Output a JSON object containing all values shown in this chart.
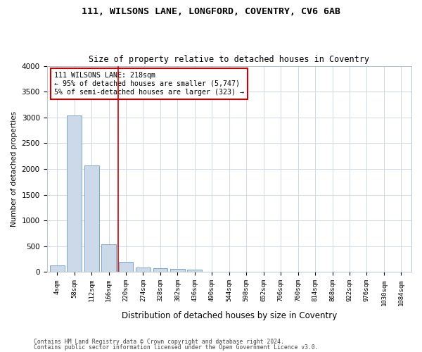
{
  "title_line1": "111, WILSONS LANE, LONGFORD, COVENTRY, CV6 6AB",
  "title_line2": "Size of property relative to detached houses in Coventry",
  "xlabel": "Distribution of detached houses by size in Coventry",
  "ylabel": "Number of detached properties",
  "footnote1": "Contains HM Land Registry data © Crown copyright and database right 2024.",
  "footnote2": "Contains public sector information licensed under the Open Government Licence v3.0.",
  "annotation_line1": "111 WILSONS LANE: 218sqm",
  "annotation_line2": "← 95% of detached houses are smaller (5,747)",
  "annotation_line3": "5% of semi-detached houses are larger (323) →",
  "bar_color": "#ccd9e8",
  "bar_edge_color": "#6b9dc0",
  "vline_color": "#cc0000",
  "annotation_box_color": "#cc0000",
  "background_color": "#ffffff",
  "grid_color": "#d0d8e4",
  "categories": [
    "4sqm",
    "58sqm",
    "112sqm",
    "166sqm",
    "220sqm",
    "274sqm",
    "328sqm",
    "382sqm",
    "436sqm",
    "490sqm",
    "544sqm",
    "598sqm",
    "652sqm",
    "706sqm",
    "760sqm",
    "814sqm",
    "868sqm",
    "922sqm",
    "976sqm",
    "1030sqm",
    "1084sqm"
  ],
  "values": [
    130,
    3040,
    2070,
    540,
    200,
    90,
    70,
    55,
    50,
    0,
    0,
    0,
    0,
    0,
    0,
    0,
    0,
    0,
    0,
    0,
    0
  ],
  "ylim": [
    0,
    4000
  ],
  "yticks": [
    0,
    500,
    1000,
    1500,
    2000,
    2500,
    3000,
    3500,
    4000
  ],
  "figwidth": 6.0,
  "figheight": 5.0,
  "dpi": 100
}
